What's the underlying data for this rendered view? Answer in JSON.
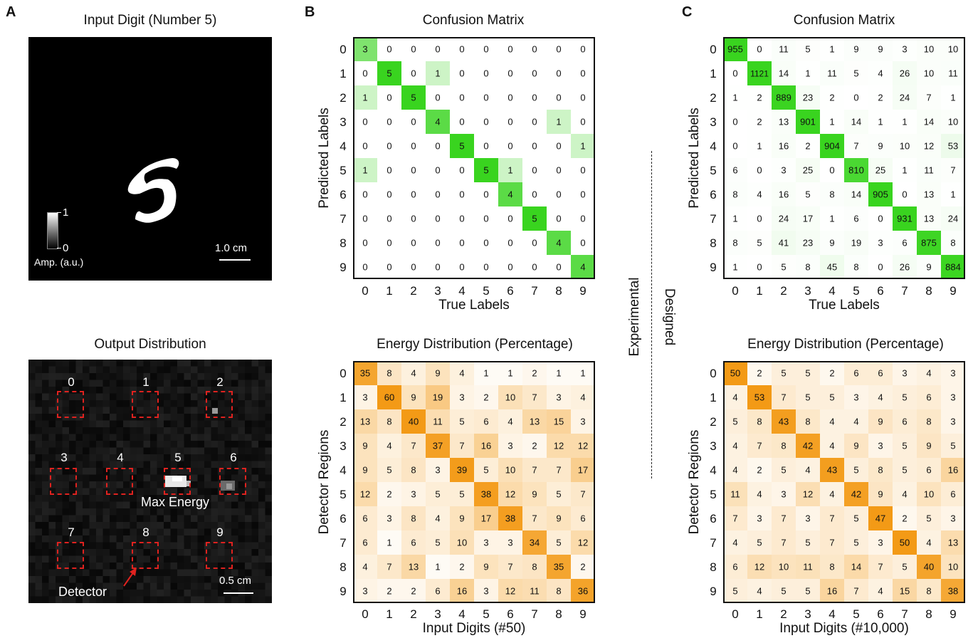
{
  "panels": {
    "a": "A",
    "b": "B",
    "c": "C"
  },
  "panel_a": {
    "input_title": "Input Digit (Number 5)",
    "colorbar_max": "1",
    "colorbar_min": "0",
    "colorbar_label": "Amp. (a.u.)",
    "input_scale": "1.0 cm",
    "output_title": "Output Distribution",
    "detector_numbers": [
      "0",
      "1",
      "2",
      "3",
      "4",
      "5",
      "6",
      "7",
      "8",
      "9"
    ],
    "max_energy_label": "Max Energy",
    "detector_label": "Detector",
    "output_scale": "0.5 cm",
    "colors": {
      "detector_box": "#e0221f"
    }
  },
  "divider": {
    "experimental": "Experimental",
    "designed": "Designed"
  },
  "chart_data": [
    {
      "type": "heatmap",
      "title": "Confusion Matrix",
      "xlabel": "True Labels",
      "ylabel": "Predicted Labels",
      "x_ticks": [
        "0",
        "1",
        "2",
        "3",
        "4",
        "5",
        "6",
        "7",
        "8",
        "9"
      ],
      "y_ticks": [
        "0",
        "1",
        "2",
        "3",
        "4",
        "5",
        "6",
        "7",
        "8",
        "9"
      ],
      "color": "#39d41f",
      "vmax": 5,
      "values": [
        [
          3,
          0,
          0,
          0,
          0,
          0,
          0,
          0,
          0,
          0
        ],
        [
          0,
          5,
          0,
          1,
          0,
          0,
          0,
          0,
          0,
          0
        ],
        [
          1,
          0,
          5,
          0,
          0,
          0,
          0,
          0,
          0,
          0
        ],
        [
          0,
          0,
          0,
          4,
          0,
          0,
          0,
          0,
          1,
          0
        ],
        [
          0,
          0,
          0,
          0,
          5,
          0,
          0,
          0,
          0,
          1
        ],
        [
          1,
          0,
          0,
          0,
          0,
          5,
          1,
          0,
          0,
          0
        ],
        [
          0,
          0,
          0,
          0,
          0,
          0,
          4,
          0,
          0,
          0
        ],
        [
          0,
          0,
          0,
          0,
          0,
          0,
          0,
          5,
          0,
          0
        ],
        [
          0,
          0,
          0,
          0,
          0,
          0,
          0,
          0,
          4,
          0
        ],
        [
          0,
          0,
          0,
          0,
          0,
          0,
          0,
          0,
          0,
          4
        ]
      ]
    },
    {
      "type": "heatmap",
      "title": "Energy Distribution (Percentage)",
      "xlabel": "Input Digits (#50)",
      "ylabel": "Detector Regions",
      "x_ticks": [
        "0",
        "1",
        "2",
        "3",
        "4",
        "5",
        "6",
        "7",
        "8",
        "9"
      ],
      "y_ticks": [
        "0",
        "1",
        "2",
        "3",
        "4",
        "5",
        "6",
        "7",
        "8",
        "9"
      ],
      "color": "#f39a16",
      "vmax": 40,
      "values": [
        [
          35,
          8,
          4,
          9,
          4,
          1,
          1,
          2,
          1,
          1
        ],
        [
          3,
          60,
          9,
          19,
          3,
          2,
          10,
          7,
          3,
          4
        ],
        [
          13,
          8,
          40,
          11,
          5,
          6,
          4,
          13,
          15,
          3
        ],
        [
          9,
          4,
          7,
          37,
          7,
          16,
          3,
          2,
          12,
          12
        ],
        [
          9,
          5,
          8,
          3,
          39,
          5,
          10,
          7,
          7,
          17
        ],
        [
          12,
          2,
          3,
          5,
          5,
          38,
          12,
          9,
          5,
          7
        ],
        [
          6,
          3,
          8,
          4,
          9,
          17,
          38,
          7,
          9,
          6
        ],
        [
          6,
          1,
          6,
          5,
          10,
          3,
          3,
          34,
          5,
          12
        ],
        [
          4,
          7,
          13,
          1,
          2,
          9,
          7,
          8,
          35,
          2
        ],
        [
          3,
          2,
          2,
          6,
          16,
          3,
          12,
          11,
          8,
          36
        ]
      ]
    },
    {
      "type": "heatmap",
      "title": "Confusion Matrix",
      "xlabel": "True Labels",
      "ylabel": "Predicted Labels",
      "x_ticks": [
        "0",
        "1",
        "2",
        "3",
        "4",
        "5",
        "6",
        "7",
        "8",
        "9"
      ],
      "y_ticks": [
        "0",
        "1",
        "2",
        "3",
        "4",
        "5",
        "6",
        "7",
        "8",
        "9"
      ],
      "color": "#39d41f",
      "vmax": 900,
      "values": [
        [
          955,
          0,
          11,
          5,
          1,
          9,
          9,
          3,
          10,
          10
        ],
        [
          0,
          1121,
          14,
          1,
          11,
          5,
          4,
          26,
          10,
          11
        ],
        [
          1,
          2,
          889,
          23,
          2,
          0,
          2,
          24,
          7,
          1
        ],
        [
          0,
          2,
          13,
          901,
          1,
          14,
          1,
          1,
          14,
          10
        ],
        [
          0,
          1,
          16,
          2,
          904,
          7,
          9,
          10,
          12,
          53
        ],
        [
          6,
          0,
          3,
          25,
          0,
          810,
          25,
          1,
          11,
          7
        ],
        [
          8,
          4,
          16,
          5,
          8,
          14,
          905,
          0,
          13,
          1
        ],
        [
          1,
          0,
          24,
          17,
          1,
          6,
          0,
          931,
          13,
          24
        ],
        [
          8,
          5,
          41,
          23,
          9,
          19,
          3,
          6,
          875,
          8
        ],
        [
          1,
          0,
          5,
          8,
          45,
          8,
          0,
          26,
          9,
          884
        ]
      ]
    },
    {
      "type": "heatmap",
      "title": "Energy Distribution (Percentage)",
      "xlabel": "Input Digits (#10,000)",
      "ylabel": "Detector Regions",
      "x_ticks": [
        "0",
        "1",
        "2",
        "3",
        "4",
        "5",
        "6",
        "7",
        "8",
        "9"
      ],
      "y_ticks": [
        "0",
        "1",
        "2",
        "3",
        "4",
        "5",
        "6",
        "7",
        "8",
        "9"
      ],
      "color": "#f39a16",
      "vmax": 45,
      "values": [
        [
          50,
          2,
          5,
          5,
          2,
          6,
          6,
          3,
          4,
          3
        ],
        [
          4,
          53,
          7,
          5,
          5,
          3,
          4,
          5,
          6,
          3
        ],
        [
          5,
          8,
          43,
          8,
          4,
          4,
          9,
          6,
          8,
          3
        ],
        [
          4,
          7,
          8,
          42,
          4,
          9,
          3,
          5,
          9,
          5
        ],
        [
          4,
          2,
          5,
          4,
          43,
          5,
          8,
          5,
          6,
          16
        ],
        [
          11,
          4,
          3,
          12,
          4,
          42,
          9,
          4,
          10,
          6
        ],
        [
          7,
          3,
          7,
          3,
          7,
          5,
          47,
          2,
          5,
          3
        ],
        [
          4,
          5,
          7,
          5,
          7,
          5,
          3,
          50,
          4,
          13
        ],
        [
          6,
          12,
          10,
          11,
          8,
          14,
          7,
          5,
          40,
          10
        ],
        [
          5,
          4,
          5,
          5,
          16,
          7,
          4,
          15,
          8,
          38
        ]
      ]
    }
  ]
}
